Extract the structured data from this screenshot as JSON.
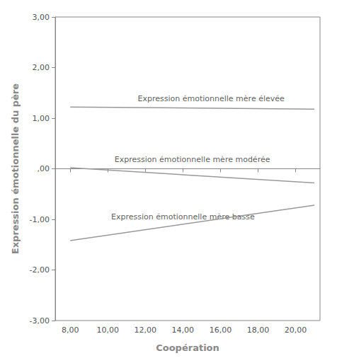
{
  "chart_data": {
    "type": "line",
    "title": "",
    "xlabel": "Coopération",
    "ylabel": "Expression émotionnelle du père",
    "xlim": [
      7.2,
      21.3
    ],
    "ylim": [
      -3.0,
      3.0
    ],
    "xticks": [
      {
        "value": 8,
        "label": "8,00"
      },
      {
        "value": 10,
        "label": "10,00"
      },
      {
        "value": 12,
        "label": "12,00"
      },
      {
        "value": 14,
        "label": "14,00"
      },
      {
        "value": 16,
        "label": "16,00"
      },
      {
        "value": 18,
        "label": "18,00"
      },
      {
        "value": 20,
        "label": "20,00"
      }
    ],
    "yticks": [
      {
        "value": -3.0,
        "label": "-3,00"
      },
      {
        "value": -2.0,
        "label": "-2,00"
      },
      {
        "value": -1.0,
        "label": "-1,00"
      },
      {
        "value": 0.0,
        "label": ",00"
      },
      {
        "value": 1.0,
        "label": "1,00"
      },
      {
        "value": 2.0,
        "label": "2,00"
      },
      {
        "value": 3.0,
        "label": "3,00"
      }
    ],
    "x": [
      8,
      21
    ],
    "series": [
      {
        "name": "Expression émotionnelle mère élevée",
        "color": "#999999",
        "values": [
          1.22,
          1.18
        ]
      },
      {
        "name": "Expression émotionnelle mère modérée",
        "color": "#999999",
        "values": [
          0.02,
          -0.28
        ]
      },
      {
        "name": "Expression émotionnelle mère basse",
        "color": "#999999",
        "values": [
          -1.42,
          -0.72
        ]
      }
    ],
    "annotations": [
      {
        "text": "Expression émotionnelle mère élevée",
        "x": 15.5,
        "y": 1.28
      },
      {
        "text": "Expression émotionnelle mère modérée",
        "x": 14.5,
        "y": 0.08
      },
      {
        "text": "Expression émotionnelle mère basse",
        "x": 14.0,
        "y": -1.05
      }
    ],
    "grid": false
  }
}
